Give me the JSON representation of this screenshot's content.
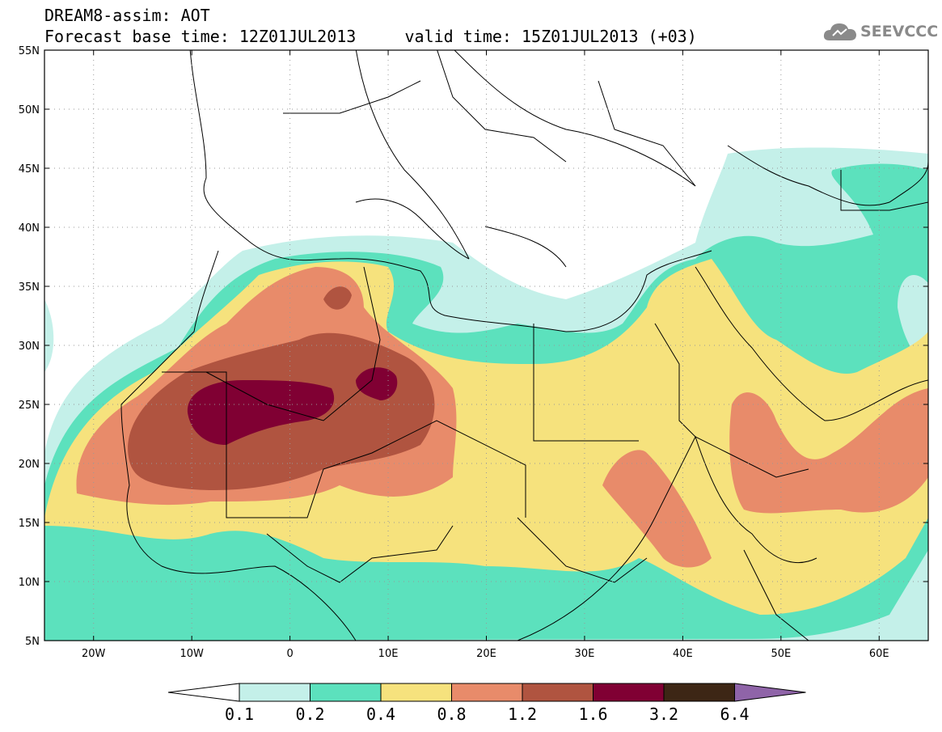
{
  "header": {
    "title_line1": "DREAM8-assim: AOT",
    "title_line2": "Forecast base time: 12Z01JUL2013     valid time: 15Z01JUL2013 (+03)",
    "logo_text": "SEEVCCC"
  },
  "map": {
    "lon_range": [
      -25,
      65
    ],
    "lat_range": [
      5,
      55
    ],
    "lon_ticks": [
      {
        "v": -20,
        "label": "20W"
      },
      {
        "v": -10,
        "label": "10W"
      },
      {
        "v": 0,
        "label": "0"
      },
      {
        "v": 10,
        "label": "10E"
      },
      {
        "v": 20,
        "label": "20E"
      },
      {
        "v": 30,
        "label": "30E"
      },
      {
        "v": 40,
        "label": "40E"
      },
      {
        "v": 50,
        "label": "50E"
      },
      {
        "v": 60,
        "label": "60E"
      }
    ],
    "lat_ticks": [
      {
        "v": 55,
        "label": "55N"
      },
      {
        "v": 50,
        "label": "50N"
      },
      {
        "v": 45,
        "label": "45N"
      },
      {
        "v": 40,
        "label": "40N"
      },
      {
        "v": 35,
        "label": "35N"
      },
      {
        "v": 30,
        "label": "30N"
      },
      {
        "v": 25,
        "label": "25N"
      },
      {
        "v": 20,
        "label": "20N"
      },
      {
        "v": 15,
        "label": "15N"
      },
      {
        "v": 10,
        "label": "10N"
      },
      {
        "v": 5,
        "label": "5N"
      }
    ],
    "grid": "dotted"
  },
  "colorbar": {
    "labels": [
      "0.1",
      "0.2",
      "0.4",
      "0.8",
      "1.2",
      "1.6",
      "3.2",
      "6.4"
    ],
    "colors": [
      "#ffffff",
      "#c4f0e9",
      "#5ce1bd",
      "#f6e27d",
      "#e88b6a",
      "#b05440",
      "#800033",
      "#3d2615",
      "#8f64a8"
    ]
  }
}
